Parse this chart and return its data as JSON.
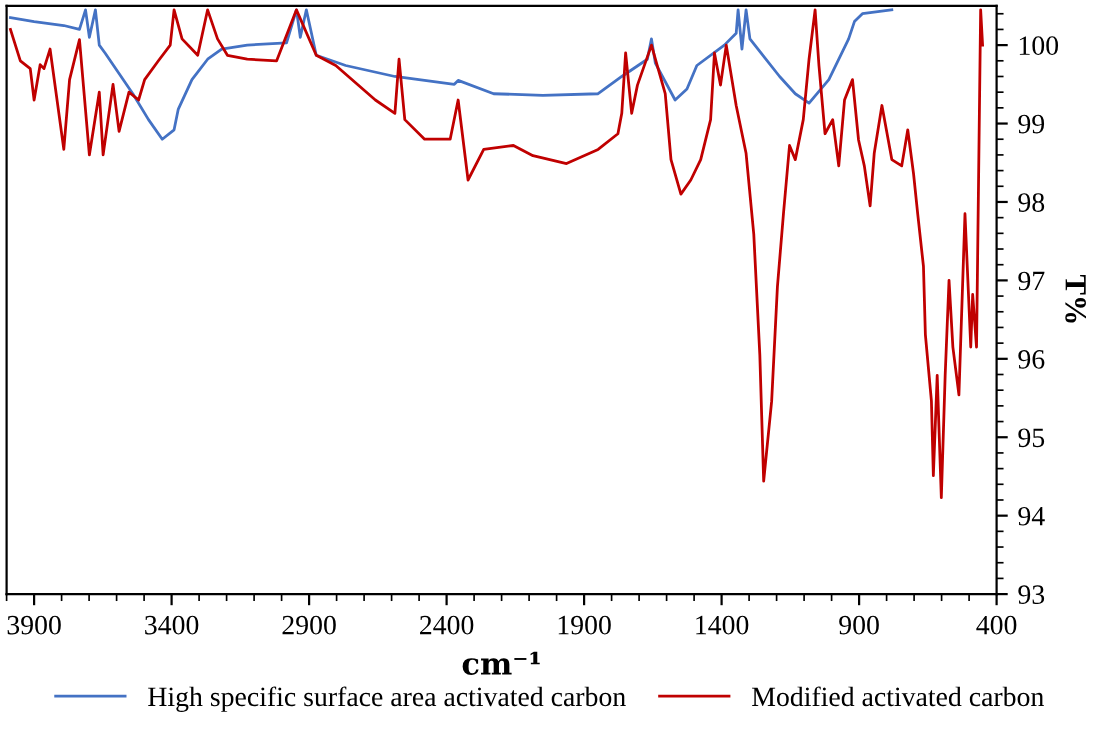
{
  "chart_data": {
    "type": "line",
    "xlabel": "cm⁻¹",
    "ylabel": "T%",
    "xlim": [
      4000,
      400
    ],
    "xticks": [
      3900,
      3400,
      2900,
      2400,
      1900,
      1400,
      900,
      400
    ],
    "ylim": [
      93,
      100.5
    ],
    "yticks": [
      93,
      94,
      95,
      96,
      97,
      98,
      99,
      100
    ],
    "grid": false,
    "legend": "bottom",
    "marker": "none",
    "line_style": "solid",
    "series": [
      {
        "name": "High specific surface area activated carbon",
        "color": "#4472c4",
        "x": [
          3986,
          3900,
          3792,
          3735,
          3713,
          3699,
          3677,
          3663,
          3642,
          3541,
          3484,
          3434,
          3391,
          3376,
          3326,
          3269,
          3218,
          3125,
          2982,
          2946,
          2932,
          2910,
          2874,
          2767,
          2588,
          2372,
          2358,
          2229,
          2050,
          1849,
          1763,
          1670,
          1655,
          1641,
          1569,
          1526,
          1490,
          1390,
          1347,
          1340,
          1326,
          1311,
          1297,
          1189,
          1132,
          1082,
          1010,
          938,
          917,
          888,
          781
        ],
        "values": [
          100.35,
          100.3,
          100.25,
          100.2,
          100.45,
          100.1,
          100.45,
          100.0,
          99.9,
          99.38,
          99.05,
          98.8,
          98.92,
          99.18,
          99.56,
          99.82,
          99.95,
          100.0,
          100.03,
          100.45,
          100.1,
          100.45,
          99.87,
          99.74,
          99.6,
          99.5,
          99.55,
          99.38,
          99.36,
          99.38,
          99.6,
          99.82,
          100.08,
          99.77,
          99.3,
          99.44,
          99.74,
          100.0,
          100.15,
          100.45,
          99.95,
          100.45,
          100.08,
          99.6,
          99.38,
          99.26,
          99.56,
          100.08,
          100.3,
          100.4,
          100.45
        ]
      },
      {
        "name": "Modified activated carbon",
        "color": "#c00000",
        "x": [
          3986,
          3950,
          3914,
          3900,
          3878,
          3864,
          3842,
          3792,
          3771,
          3735,
          3699,
          3663,
          3649,
          3613,
          3591,
          3555,
          3520,
          3498,
          3448,
          3405,
          3391,
          3362,
          3305,
          3269,
          3233,
          3197,
          3125,
          3018,
          2946,
          2874,
          2803,
          2659,
          2588,
          2573,
          2552,
          2480,
          2387,
          2358,
          2322,
          2265,
          2157,
          2086,
          1964,
          1849,
          1777,
          1763,
          1749,
          1727,
          1706,
          1655,
          1634,
          1605,
          1584,
          1548,
          1512,
          1476,
          1440,
          1426,
          1404,
          1383,
          1347,
          1311,
          1283,
          1261,
          1247,
          1218,
          1197,
          1175,
          1153,
          1132,
          1103,
          1082,
          1060,
          1046,
          1024,
          996,
          974,
          953,
          924,
          902,
          881,
          860,
          845,
          817,
          781,
          745,
          723,
          702,
          687,
          666,
          659,
          637,
          630,
          616,
          601,
          587,
          573,
          559,
          537,
          515,
          494,
          487,
          473,
          458,
          451
        ],
        "values": [
          100.2,
          99.8,
          99.7,
          99.3,
          99.75,
          99.7,
          99.95,
          98.67,
          99.56,
          100.07,
          98.6,
          99.4,
          98.6,
          99.5,
          98.9,
          99.4,
          99.3,
          99.56,
          99.8,
          100.0,
          100.45,
          100.08,
          99.87,
          100.45,
          100.08,
          99.87,
          99.82,
          99.8,
          100.45,
          99.87,
          99.74,
          99.3,
          99.13,
          99.82,
          99.05,
          98.8,
          98.8,
          99.3,
          98.28,
          98.67,
          98.72,
          98.59,
          98.49,
          98.67,
          98.87,
          99.13,
          99.9,
          99.13,
          99.49,
          100.0,
          99.74,
          99.38,
          98.54,
          98.1,
          98.28,
          98.54,
          99.05,
          99.9,
          99.49,
          100.0,
          99.23,
          98.62,
          97.59,
          96.05,
          94.44,
          95.46,
          96.92,
          97.85,
          98.72,
          98.54,
          99.05,
          99.82,
          100.45,
          99.74,
          98.87,
          99.05,
          98.46,
          99.3,
          99.56,
          98.79,
          98.46,
          97.95,
          98.62,
          99.23,
          98.54,
          98.46,
          98.92,
          98.36,
          97.85,
          97.18,
          96.31,
          95.46,
          94.51,
          95.79,
          94.23,
          95.79,
          97.0,
          96.15,
          95.54,
          97.85,
          96.15,
          96.82,
          96.15,
          100.45,
          100.0
        ]
      }
    ]
  }
}
